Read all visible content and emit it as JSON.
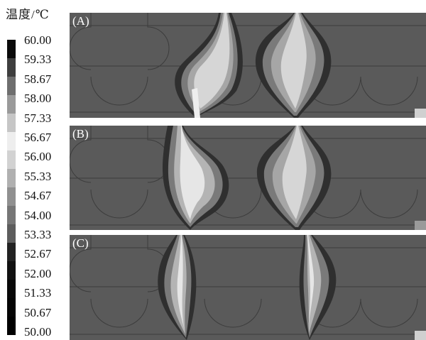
{
  "legend": {
    "unit_label": "温度/℃",
    "ticks": [
      "60.00",
      "59.33",
      "58.67",
      "58.00",
      "57.33",
      "56.67",
      "56.00",
      "55.33",
      "54.67",
      "54.00",
      "53.33",
      "52.67",
      "52.00",
      "51.33",
      "50.67",
      "50.00"
    ],
    "colors": [
      "#0a0a0a",
      "#3e3e3e",
      "#6e6e6e",
      "#9a9a9a",
      "#c6c6c6",
      "#eeeeee",
      "#d2d2d2",
      "#b0b0b0",
      "#909090",
      "#767676",
      "#5d5d5d",
      "#222222",
      "#111111",
      "#080808",
      "#050505",
      "#000000"
    ]
  },
  "panels": [
    {
      "label": "(A)"
    },
    {
      "label": "(B)"
    },
    {
      "label": "(C)"
    }
  ],
  "colors": {
    "background": "#5a5a5a",
    "outline": "#3c3c3c"
  }
}
